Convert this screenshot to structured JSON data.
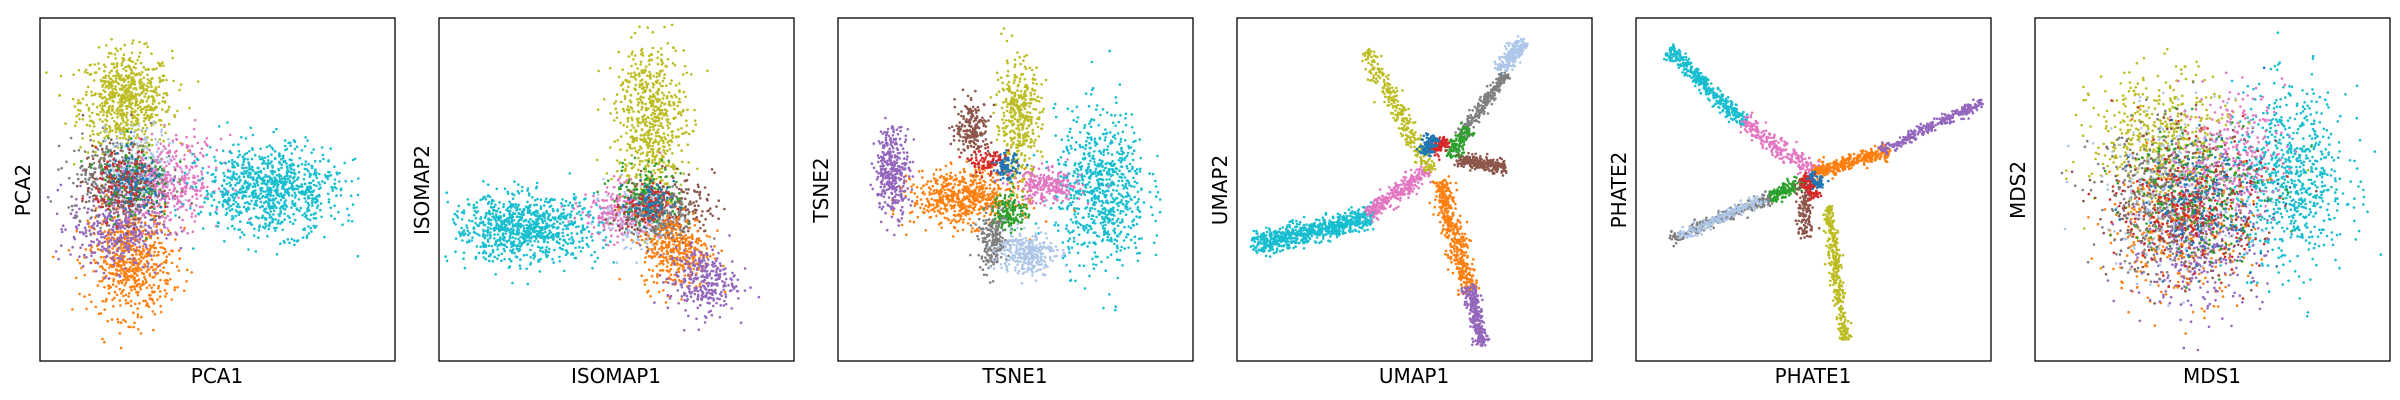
{
  "palette": {
    "blue": "#1f77b4",
    "orange": "#ff7f0e",
    "green": "#2ca02c",
    "red": "#d62728",
    "purple": "#9467bd",
    "brown": "#8c564b",
    "pink": "#e377c2",
    "gray": "#7f7f7f",
    "olive": "#bcbd22",
    "cyan": "#17becf",
    "lightblue": "#aec7e8"
  },
  "chart_data": [
    {
      "type": "scatter",
      "xlabel": "PCA1",
      "ylabel": "PCA2",
      "xlim": [
        -6,
        9
      ],
      "ylim": [
        -6,
        6
      ],
      "clusters": [
        {
          "color": "olive",
          "cx": -2.5,
          "cy": 3.2,
          "sx": 1.0,
          "sy": 0.9,
          "n": 700
        },
        {
          "color": "orange",
          "cx": -2.3,
          "cy": -2.6,
          "sx": 0.9,
          "sy": 1.0,
          "n": 650
        },
        {
          "color": "purple",
          "cx": -2.9,
          "cy": -1.3,
          "sx": 1.0,
          "sy": 0.8,
          "n": 400
        },
        {
          "color": "gray",
          "cx": -3.0,
          "cy": 0.5,
          "sx": 1.0,
          "sy": 0.7,
          "n": 300
        },
        {
          "color": "brown",
          "cx": -2.6,
          "cy": 0.2,
          "sx": 0.9,
          "sy": 0.7,
          "n": 250
        },
        {
          "color": "lightblue",
          "cx": -1.8,
          "cy": 0.8,
          "sx": 0.8,
          "sy": 0.7,
          "n": 250
        },
        {
          "color": "green",
          "cx": -2.1,
          "cy": 0.4,
          "sx": 0.8,
          "sy": 0.7,
          "n": 150
        },
        {
          "color": "red",
          "cx": -2.4,
          "cy": 0.2,
          "sx": 0.7,
          "sy": 0.6,
          "n": 120
        },
        {
          "color": "blue",
          "cx": -2.0,
          "cy": 0.1,
          "sx": 0.7,
          "sy": 0.6,
          "n": 120
        },
        {
          "color": "pink",
          "cx": -0.3,
          "cy": 0.3,
          "sx": 1.0,
          "sy": 0.8,
          "n": 300
        },
        {
          "color": "cyan",
          "cx": 3.8,
          "cy": 0.0,
          "sx": 1.5,
          "sy": 0.8,
          "n": 900
        }
      ]
    },
    {
      "type": "scatter",
      "xlabel": "ISOMAP1",
      "ylabel": "ISOMAP2",
      "xlim": [
        -6,
        6
      ],
      "ylim": [
        -5,
        7
      ],
      "clusters": [
        {
          "color": "cyan",
          "cx": -3.2,
          "cy": -0.4,
          "sx": 1.3,
          "sy": 0.6,
          "n": 900
        },
        {
          "color": "olive",
          "cx": 1.2,
          "cy": 3.5,
          "sx": 0.6,
          "sy": 1.5,
          "n": 650
        },
        {
          "color": "pink",
          "cx": 0.2,
          "cy": 0.2,
          "sx": 0.7,
          "sy": 0.5,
          "n": 250
        },
        {
          "color": "lightblue",
          "cx": 0.8,
          "cy": 0.0,
          "sx": 0.6,
          "sy": 0.6,
          "n": 200
        },
        {
          "color": "brown",
          "cx": 1.8,
          "cy": 0.3,
          "sx": 0.8,
          "sy": 0.6,
          "n": 250
        },
        {
          "color": "green",
          "cx": 1.1,
          "cy": 0.8,
          "sx": 0.6,
          "sy": 0.6,
          "n": 150
        },
        {
          "color": "gray",
          "cx": 1.6,
          "cy": -0.1,
          "sx": 0.6,
          "sy": 0.5,
          "n": 150
        },
        {
          "color": "red",
          "cx": 1.0,
          "cy": 0.4,
          "sx": 0.4,
          "sy": 0.4,
          "n": 80
        },
        {
          "color": "blue",
          "cx": 1.2,
          "cy": 0.5,
          "sx": 0.4,
          "sy": 0.4,
          "n": 80
        },
        {
          "color": "orange",
          "cx": 2.1,
          "cy": -1.2,
          "sx": 0.6,
          "sy": 0.7,
          "n": 350
        },
        {
          "color": "purple",
          "cx": 3.0,
          "cy": -2.3,
          "sx": 0.6,
          "sy": 0.6,
          "n": 300
        }
      ]
    },
    {
      "type": "scatter",
      "xlabel": "TSNE1",
      "ylabel": "TSNE2",
      "xlim": [
        -6,
        6
      ],
      "ylim": [
        -6,
        6
      ],
      "clusters": [
        {
          "color": "cyan",
          "cx": 3.0,
          "cy": 0.0,
          "sx": 0.8,
          "sy": 1.4,
          "n": 750
        },
        {
          "color": "orange",
          "cx": -1.8,
          "cy": -0.3,
          "sx": 0.9,
          "sy": 0.5,
          "n": 600
        },
        {
          "color": "purple",
          "cx": -4.3,
          "cy": 0.7,
          "sx": 0.3,
          "sy": 0.8,
          "n": 350
        },
        {
          "color": "olive",
          "cx": 0.1,
          "cy": 2.5,
          "sx": 0.4,
          "sy": 1.1,
          "n": 400
        },
        {
          "color": "brown",
          "cx": -1.5,
          "cy": 2.2,
          "sx": 0.3,
          "sy": 0.5,
          "n": 200
        },
        {
          "color": "red",
          "cx": -0.9,
          "cy": 1.0,
          "sx": 0.35,
          "sy": 0.2,
          "n": 100
        },
        {
          "color": "blue",
          "cx": -0.3,
          "cy": 0.8,
          "sx": 0.2,
          "sy": 0.25,
          "n": 90
        },
        {
          "color": "pink",
          "cx": 1.1,
          "cy": 0.1,
          "sx": 0.6,
          "sy": 0.3,
          "n": 250
        },
        {
          "color": "green",
          "cx": -0.2,
          "cy": -0.8,
          "sx": 0.3,
          "sy": 0.35,
          "n": 150
        },
        {
          "color": "gray",
          "cx": -0.8,
          "cy": -1.9,
          "sx": 0.25,
          "sy": 0.5,
          "n": 200
        },
        {
          "color": "lightblue",
          "cx": 0.4,
          "cy": -2.3,
          "sx": 0.5,
          "sy": 0.4,
          "n": 300
        }
      ]
    },
    {
      "type": "scatter",
      "xlabel": "UMAP1",
      "ylabel": "UMAP2",
      "xlim": [
        -6,
        6
      ],
      "ylim": [
        -6,
        6
      ],
      "arms": [
        {
          "color": "cyan",
          "from": [
            -1.5,
            -1.0
          ],
          "to": [
            -5.6,
            -2.0
          ],
          "spread": 0.18,
          "n": 750
        },
        {
          "color": "pink",
          "from": [
            0.4,
            0.7
          ],
          "to": [
            -1.6,
            -0.9
          ],
          "spread": 0.14,
          "n": 300
        },
        {
          "color": "olive",
          "from": [
            -1.7,
            5.0
          ],
          "to": [
            0.6,
            0.6
          ],
          "spread": 0.14,
          "n": 300
        },
        {
          "color": "orange",
          "from": [
            0.9,
            0.3
          ],
          "to": [
            1.9,
            -3.7
          ],
          "spread": 0.17,
          "n": 450
        },
        {
          "color": "purple",
          "from": [
            1.9,
            -3.5
          ],
          "to": [
            2.4,
            -5.6
          ],
          "spread": 0.12,
          "n": 250
        },
        {
          "color": "brown",
          "from": [
            1.5,
            1.1
          ],
          "to": [
            3.2,
            0.8
          ],
          "spread": 0.12,
          "n": 250
        },
        {
          "color": "gray",
          "from": [
            1.6,
            1.9
          ],
          "to": [
            3.2,
            4.2
          ],
          "spread": 0.1,
          "n": 250
        },
        {
          "color": "green",
          "from": [
            1.2,
            1.2
          ],
          "to": [
            1.9,
            2.2
          ],
          "spread": 0.14,
          "n": 120
        },
        {
          "color": "red",
          "from": [
            0.6,
            1.4
          ],
          "to": [
            1.1,
            1.8
          ],
          "spread": 0.12,
          "n": 120
        },
        {
          "color": "blue",
          "from": [
            0.3,
            1.3
          ],
          "to": [
            0.7,
            1.9
          ],
          "spread": 0.12,
          "n": 100
        },
        {
          "color": "lightblue",
          "from": [
            3.0,
            4.3
          ],
          "to": [
            3.8,
            5.4
          ],
          "spread": 0.12,
          "n": 200
        }
      ]
    },
    {
      "type": "scatter",
      "xlabel": "PHATE1",
      "ylabel": "PHATE2",
      "xlim": [
        -6,
        6
      ],
      "ylim": [
        -6,
        6
      ],
      "arms": [
        {
          "color": "cyan",
          "from": [
            -5.1,
            5.1
          ],
          "to": [
            -2.4,
            2.4
          ],
          "spread": 0.12,
          "n": 400
        },
        {
          "color": "pink",
          "from": [
            -2.5,
            2.5
          ],
          "to": [
            0.0,
            0.6
          ],
          "spread": 0.16,
          "n": 250
        },
        {
          "color": "orange",
          "from": [
            0.0,
            0.6
          ],
          "to": [
            2.6,
            1.4
          ],
          "spread": 0.12,
          "n": 350
        },
        {
          "color": "purple",
          "from": [
            2.4,
            1.4
          ],
          "to": [
            5.9,
            3.2
          ],
          "spread": 0.09,
          "n": 300
        },
        {
          "color": "gray",
          "from": [
            -5.0,
            -1.8
          ],
          "to": [
            -1.5,
            -0.3
          ],
          "spread": 0.1,
          "n": 250
        },
        {
          "color": "lightblue",
          "from": [
            -4.7,
            -1.7
          ],
          "to": [
            -1.7,
            -0.3
          ],
          "spread": 0.1,
          "n": 200
        },
        {
          "color": "green",
          "from": [
            -1.5,
            -0.3
          ],
          "to": [
            -0.3,
            0.3
          ],
          "spread": 0.12,
          "n": 150
        },
        {
          "color": "olive",
          "from": [
            0.5,
            -0.6
          ],
          "to": [
            1.1,
            -5.5
          ],
          "spread": 0.1,
          "n": 350
        },
        {
          "color": "brown",
          "from": [
            -0.3,
            0.3
          ],
          "to": [
            -0.3,
            -1.7
          ],
          "spread": 0.12,
          "n": 150
        },
        {
          "color": "red",
          "from": [
            -0.3,
            0.5
          ],
          "to": [
            0.1,
            -0.3
          ],
          "spread": 0.12,
          "n": 100
        },
        {
          "color": "blue",
          "from": [
            -0.1,
            0.6
          ],
          "to": [
            0.3,
            0.1
          ],
          "spread": 0.1,
          "n": 60
        }
      ]
    },
    {
      "type": "scatter",
      "xlabel": "MDS1",
      "ylabel": "MDS2",
      "xlim": [
        -6,
        6
      ],
      "ylim": [
        -6,
        6
      ],
      "clusters": [
        {
          "color": "cyan",
          "cx": 2.7,
          "cy": 0.4,
          "sx": 1.0,
          "sy": 1.6,
          "n": 750
        },
        {
          "color": "olive",
          "cx": -1.8,
          "cy": 1.8,
          "sx": 1.2,
          "sy": 1.2,
          "n": 500
        },
        {
          "color": "orange",
          "cx": -1.2,
          "cy": -1.4,
          "sx": 1.3,
          "sy": 1.3,
          "n": 400
        },
        {
          "color": "purple",
          "cx": -0.6,
          "cy": -2.1,
          "sx": 1.2,
          "sy": 1.1,
          "n": 350
        },
        {
          "color": "brown",
          "cx": -1.0,
          "cy": -0.5,
          "sx": 1.3,
          "sy": 1.3,
          "n": 300
        },
        {
          "color": "gray",
          "cx": -2.0,
          "cy": -0.4,
          "sx": 1.1,
          "sy": 1.3,
          "n": 300
        },
        {
          "color": "lightblue",
          "cx": -1.1,
          "cy": -0.1,
          "sx": 1.3,
          "sy": 1.4,
          "n": 300
        },
        {
          "color": "green",
          "cx": -0.5,
          "cy": 0.0,
          "sx": 1.2,
          "sy": 1.3,
          "n": 250
        },
        {
          "color": "red",
          "cx": -0.7,
          "cy": -0.6,
          "sx": 1.2,
          "sy": 1.2,
          "n": 250
        },
        {
          "color": "blue",
          "cx": -0.3,
          "cy": -0.3,
          "sx": 1.1,
          "sy": 1.1,
          "n": 200
        },
        {
          "color": "pink",
          "cx": 0.7,
          "cy": 1.4,
          "sx": 0.9,
          "sy": 1.1,
          "n": 250
        }
      ]
    }
  ]
}
